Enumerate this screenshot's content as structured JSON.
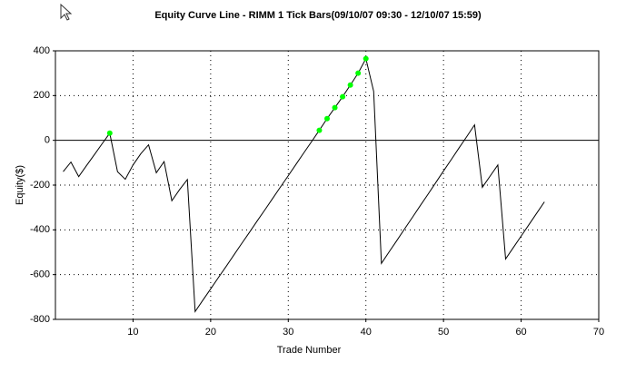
{
  "chart_data": {
    "type": "line",
    "title": "Equity Curve Line - RIMM 1 Tick Bars(09/10/07 09:30 - 12/10/07 15:59)",
    "xlabel": "Trade Number",
    "ylabel": "Equity($)",
    "x": [
      1,
      2,
      3,
      4,
      5,
      6,
      7,
      8,
      9,
      10,
      11,
      12,
      13,
      14,
      15,
      16,
      17,
      18,
      19,
      20,
      21,
      22,
      23,
      24,
      25,
      26,
      27,
      28,
      29,
      30,
      31,
      32,
      33,
      34,
      35,
      36,
      37,
      38,
      39,
      40,
      41,
      42,
      43,
      44,
      45,
      46,
      47,
      48,
      49,
      50,
      51,
      52,
      53,
      54,
      55,
      56,
      57,
      58,
      59,
      60,
      61,
      62,
      63
    ],
    "series": [
      {
        "color": "#000000",
        "values": [
          -140,
          -97,
          -162,
          -113,
          -65,
          -16,
          32,
          -140,
          -174,
          -110,
          -60,
          -20,
          -145,
          -95,
          -270,
          -220,
          -175,
          -765,
          -714,
          -664,
          -613,
          -563,
          -512,
          -461,
          -411,
          -360,
          -310,
          -259,
          -208,
          -158,
          -107,
          -56,
          -6,
          45,
          97,
          146,
          195,
          247,
          300,
          365,
          219,
          -550,
          -498,
          -447,
          -395,
          -344,
          -292,
          -241,
          -189,
          -137,
          -86,
          -34,
          17,
          69,
          -210,
          -160,
          -110,
          -530,
          -479,
          -428,
          -377,
          -326,
          -275
        ]
      }
    ],
    "markers": {
      "color": "#00ff00",
      "x": [
        7,
        34,
        35,
        36,
        37,
        38,
        39,
        40
      ],
      "values": [
        32,
        45,
        97,
        146,
        195,
        247,
        300,
        365
      ]
    },
    "xlim": [
      0,
      70
    ],
    "xticks": [
      10,
      20,
      30,
      40,
      50,
      60,
      70
    ],
    "ylim": [
      -800,
      400
    ],
    "yticks": [
      -800,
      -600,
      -400,
      -200,
      0,
      200,
      400
    ],
    "grid": true
  }
}
